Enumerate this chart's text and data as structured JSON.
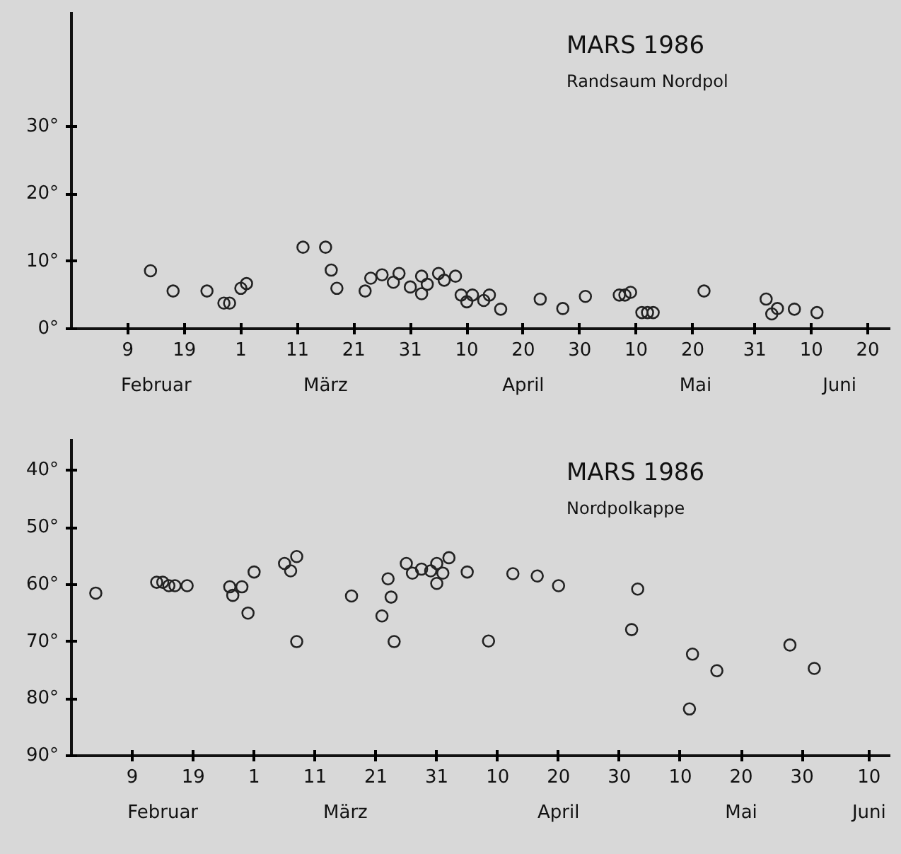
{
  "chart_data": [
    {
      "type": "scatter",
      "title": "MARS  1986",
      "subtitle": "Randsaum  Nordpol",
      "marker": "circle",
      "color": "#222222",
      "x": [
        "1986-02-13",
        "1986-02-17",
        "1986-02-23",
        "1986-02-26",
        "1986-02-27",
        "1986-03-01",
        "1986-03-02",
        "1986-03-12",
        "1986-03-16",
        "1986-03-17",
        "1986-03-18",
        "1986-03-23",
        "1986-03-24",
        "1986-03-26",
        "1986-03-28",
        "1986-03-29",
        "1986-03-31",
        "1986-04-02",
        "1986-04-02",
        "1986-04-03",
        "1986-04-05",
        "1986-04-06",
        "1986-04-08",
        "1986-04-09",
        "1986-04-10",
        "1986-04-11",
        "1986-04-13",
        "1986-04-14",
        "1986-04-16",
        "1986-04-23",
        "1986-04-27",
        "1986-05-01",
        "1986-05-07",
        "1986-05-08",
        "1986-05-09",
        "1986-05-11",
        "1986-05-12",
        "1986-05-13",
        "1986-05-22",
        "1986-06-02",
        "1986-06-03",
        "1986-06-04",
        "1986-06-07",
        "1986-06-11"
      ],
      "values": [
        8.6,
        5.6,
        5.6,
        3.8,
        3.8,
        6.0,
        6.7,
        12.1,
        12.1,
        8.7,
        6.0,
        5.6,
        7.5,
        8.0,
        6.9,
        8.2,
        6.2,
        7.8,
        5.2,
        6.6,
        8.2,
        7.2,
        7.8,
        5.0,
        4.0,
        5.0,
        4.2,
        5.0,
        2.9,
        4.4,
        3.0,
        4.8,
        5.0,
        5.0,
        5.4,
        2.4,
        2.4,
        2.4,
        5.6,
        4.4,
        2.2,
        3.0,
        2.9,
        2.4
      ],
      "xlim": [
        "1986-01-30",
        "1986-06-24"
      ],
      "ylim": [
        0,
        47
      ],
      "xticks": [
        {
          "value": "1986-02-09",
          "label": "9"
        },
        {
          "value": "1986-02-19",
          "label": "19"
        },
        {
          "value": "1986-03-01",
          "label": "1"
        },
        {
          "value": "1986-03-11",
          "label": "11"
        },
        {
          "value": "1986-03-21",
          "label": "21"
        },
        {
          "value": "1986-03-31",
          "label": "31"
        },
        {
          "value": "1986-04-10",
          "label": "10"
        },
        {
          "value": "1986-04-20",
          "label": "20"
        },
        {
          "value": "1986-04-30",
          "label": "30"
        },
        {
          "value": "1986-05-10",
          "label": "10"
        },
        {
          "value": "1986-05-20",
          "label": "20"
        },
        {
          "value": "1986-05-31",
          "label": "31"
        },
        {
          "value": "1986-06-10",
          "label": "10"
        },
        {
          "value": "1986-06-20",
          "label": "20"
        }
      ],
      "yticks": [
        {
          "value": 0,
          "label": "0°"
        },
        {
          "value": 10,
          "label": "10°"
        },
        {
          "value": 20,
          "label": "20°"
        },
        {
          "value": 30,
          "label": "30°"
        }
      ],
      "annotations": [
        "Februar",
        "März",
        "April",
        "Mai",
        "Juni"
      ]
    },
    {
      "type": "scatter",
      "title": "MARS  1986",
      "subtitle": "Nordpolkappe",
      "marker": "circle",
      "color": "#222222",
      "x": [
        "1986-02-03",
        "1986-02-13",
        "1986-02-14",
        "1986-02-15",
        "1986-02-16",
        "1986-02-18",
        "1986-02-25",
        "1986-02-25T12:00",
        "1986-02-27",
        "1986-02-28",
        "1986-03-01",
        "1986-03-06",
        "1986-03-07",
        "1986-03-08",
        "1986-03-08",
        "1986-03-17",
        "1986-03-22",
        "1986-03-23",
        "1986-03-23T12:00",
        "1986-03-24",
        "1986-03-26",
        "1986-03-27",
        "1986-03-28T12:00",
        "1986-03-30",
        "1986-03-31",
        "1986-03-31",
        "1986-04-01",
        "1986-04-02",
        "1986-04-05",
        "1986-04-08T12:00",
        "1986-04-12T12:00",
        "1986-04-16T12:00",
        "1986-04-20",
        "1986-05-02",
        "1986-05-03",
        "1986-05-12",
        "1986-05-11T12:00",
        "1986-05-16",
        "1986-05-28",
        "1986-06-01"
      ],
      "values": [
        61.5,
        59.6,
        59.6,
        60.2,
        60.2,
        60.2,
        60.4,
        61.9,
        60.4,
        65.0,
        57.8,
        56.3,
        57.6,
        55.1,
        70.0,
        62.0,
        65.5,
        59.0,
        62.2,
        70.0,
        56.3,
        58.0,
        57.3,
        57.6,
        59.8,
        56.3,
        58.0,
        55.3,
        57.8,
        69.9,
        58.1,
        58.5,
        60.2,
        67.9,
        60.8,
        72.2,
        81.8,
        75.1,
        70.6,
        74.7
      ],
      "xlim": [
        "1986-01-30",
        "1986-06-13T12:00"
      ],
      "ylim": [
        90,
        34.5
      ],
      "xticks": [
        {
          "value": "1986-02-09",
          "label": "9"
        },
        {
          "value": "1986-02-19",
          "label": "19"
        },
        {
          "value": "1986-03-01",
          "label": "1"
        },
        {
          "value": "1986-03-11",
          "label": "11"
        },
        {
          "value": "1986-03-21",
          "label": "21"
        },
        {
          "value": "1986-03-31",
          "label": "31"
        },
        {
          "value": "1986-04-10",
          "label": "10"
        },
        {
          "value": "1986-04-20",
          "label": "20"
        },
        {
          "value": "1986-04-30",
          "label": "30"
        },
        {
          "value": "1986-05-10",
          "label": "10"
        },
        {
          "value": "1986-05-20",
          "label": "20"
        },
        {
          "value": "1986-05-30",
          "label": "30"
        },
        {
          "value": "1986-06-10",
          "label": "10"
        }
      ],
      "yticks": [
        {
          "value": 40,
          "label": "40°"
        },
        {
          "value": 50,
          "label": "50°"
        },
        {
          "value": 60,
          "label": "60°"
        },
        {
          "value": 70,
          "label": "70°"
        },
        {
          "value": 80,
          "label": "80°"
        },
        {
          "value": 90,
          "label": "90°"
        }
      ],
      "annotations": [
        "Februar",
        "März",
        "April",
        "Mai",
        "Juni"
      ]
    }
  ]
}
